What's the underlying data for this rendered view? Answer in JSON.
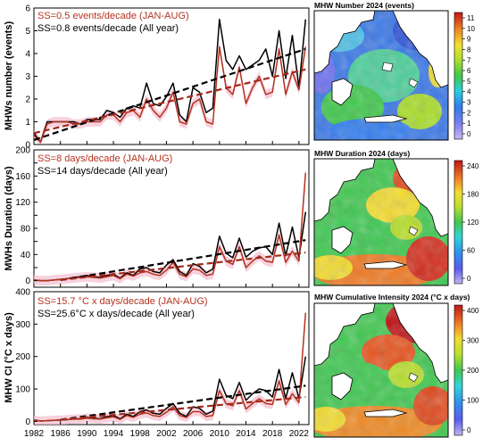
{
  "colors": {
    "all_year": "#000000",
    "jan_aug": "#b5321f",
    "band": "#f4c2d2",
    "trend_jan_aug": "#a22a1a"
  },
  "chart_data": [
    {
      "type": "line",
      "id": "number",
      "ylabel": "MHWs number  (events)",
      "ylim": [
        0,
        6
      ],
      "yticks": [
        0,
        1,
        2,
        3,
        4,
        5,
        6
      ],
      "xlim": [
        1982,
        2023.5
      ],
      "xticks": [
        1982,
        1986,
        1990,
        1994,
        1998,
        2002,
        2006,
        2010,
        2014,
        2018,
        2022
      ],
      "annotations": [
        "SS=0.5 events/decade (JAN-AUG)",
        "SS=0.8 events/decade (All year)"
      ],
      "x": [
        1982,
        1983,
        1984,
        1985,
        1986,
        1987,
        1988,
        1989,
        1990,
        1991,
        1992,
        1993,
        1994,
        1995,
        1996,
        1997,
        1998,
        1999,
        2000,
        2001,
        2002,
        2003,
        2004,
        2005,
        2006,
        2007,
        2008,
        2009,
        2010,
        2011,
        2012,
        2013,
        2014,
        2015,
        2016,
        2017,
        2018,
        2019,
        2020,
        2021,
        2022,
        2023
      ],
      "series": [
        {
          "name": "All year",
          "values": [
            0.5,
            0.1,
            1.0,
            1.0,
            1.0,
            1.0,
            1.0,
            0.9,
            1.1,
            1.1,
            1.1,
            1.5,
            1.4,
            1.2,
            1.6,
            1.7,
            1.6,
            2.7,
            1.8,
            1.7,
            2.1,
            2.7,
            1.3,
            1.0,
            2.5,
            2.3,
            1.4,
            1.6,
            5.5,
            3.7,
            3.3,
            3.9,
            3.3,
            3.5,
            3.7,
            4.2,
            3.0,
            5.0,
            2.9,
            4.8,
            2.5,
            5.5
          ]
        },
        {
          "name": "JAN-AUG",
          "values": [
            0.4,
            0.1,
            0.9,
            1.0,
            1.0,
            1.0,
            0.9,
            0.9,
            1.0,
            1.0,
            1.0,
            1.3,
            1.3,
            1.0,
            1.4,
            1.5,
            1.2,
            2.0,
            1.5,
            1.2,
            1.6,
            2.3,
            1.0,
            0.9,
            1.8,
            2.0,
            1.0,
            0.9,
            4.3,
            2.5,
            2.2,
            3.4,
            1.8,
            2.5,
            3.0,
            2.2,
            2.3,
            4.2,
            2.2,
            3.2,
            2.4,
            4.3
          ]
        }
      ],
      "trends": [
        {
          "name": "All year",
          "x": [
            1982,
            2023
          ],
          "y": [
            0.2,
            4.2
          ]
        },
        {
          "name": "JAN-AUG",
          "x": [
            1982,
            2023
          ],
          "y": [
            0.5,
            3.3
          ]
        }
      ]
    },
    {
      "type": "line",
      "id": "duration",
      "ylabel": "MWHs Duration (days)",
      "ylim": [
        -10,
        200
      ],
      "yticks": [
        0,
        20,
        40,
        60,
        80,
        100,
        120,
        140,
        160,
        180,
        200
      ],
      "ytick_labels": [
        "0",
        "",
        "40",
        "",
        "80",
        "",
        "120",
        "",
        "160",
        "",
        "200"
      ],
      "xlim": [
        1982,
        2023.5
      ],
      "xticks": [
        1982,
        1986,
        1990,
        1994,
        1998,
        2002,
        2006,
        2010,
        2014,
        2018,
        2022
      ],
      "annotations": [
        "SS=8 days/decade (JAN-AUG)",
        "SS=14 days/decade (All year)"
      ],
      "x": [
        1982,
        1983,
        1984,
        1985,
        1986,
        1987,
        1988,
        1989,
        1990,
        1991,
        1992,
        1993,
        1994,
        1995,
        1996,
        1997,
        1998,
        1999,
        2000,
        2001,
        2002,
        2003,
        2004,
        2005,
        2006,
        2007,
        2008,
        2009,
        2010,
        2011,
        2012,
        2013,
        2014,
        2015,
        2016,
        2017,
        2018,
        2019,
        2020,
        2021,
        2022,
        2023
      ],
      "series": [
        {
          "name": "All year",
          "values": [
            1,
            0,
            0,
            1,
            2,
            3,
            5,
            6,
            8,
            6,
            5,
            8,
            10,
            4,
            12,
            8,
            18,
            20,
            14,
            12,
            24,
            32,
            14,
            8,
            26,
            22,
            12,
            18,
            68,
            42,
            35,
            65,
            36,
            45,
            50,
            52,
            40,
            88,
            38,
            82,
            35,
            105
          ]
        },
        {
          "name": "JAN-AUG",
          "values": [
            1,
            0,
            0,
            1,
            2,
            3,
            4,
            5,
            6,
            5,
            4,
            6,
            8,
            3,
            10,
            7,
            12,
            14,
            10,
            8,
            16,
            28,
            10,
            6,
            18,
            16,
            8,
            10,
            52,
            30,
            25,
            52,
            20,
            30,
            38,
            30,
            28,
            70,
            28,
            45,
            30,
            165
          ]
        }
      ],
      "trends": [
        {
          "name": "All year",
          "x": [
            1986,
            2023
          ],
          "y": [
            1,
            62
          ]
        },
        {
          "name": "JAN-AUG",
          "x": [
            1986,
            2023
          ],
          "y": [
            1,
            43
          ]
        }
      ]
    },
    {
      "type": "line",
      "id": "intensity",
      "ylabel": "MHW CI (°C x days)",
      "ylim": [
        -10,
        400
      ],
      "yticks": [
        0,
        100,
        200,
        300,
        400
      ],
      "xlim": [
        1982,
        2023.5
      ],
      "xticks": [
        1982,
        1986,
        1990,
        1994,
        1998,
        2002,
        2006,
        2010,
        2014,
        2018,
        2022
      ],
      "xtick_labels": [
        "1982",
        "1986",
        "1990",
        "1994",
        "1998",
        "2002",
        "2006",
        "2010",
        "2014",
        "2018",
        "2022"
      ],
      "annotations": [
        "SS=15.7 °C x days/decade (JAN-AUG)",
        "SS=25.6°C x days/decade (All year)"
      ],
      "x": [
        1982,
        1983,
        1984,
        1985,
        1986,
        1987,
        1988,
        1989,
        1990,
        1991,
        1992,
        1993,
        1994,
        1995,
        1996,
        1997,
        1998,
        1999,
        2000,
        2001,
        2002,
        2003,
        2004,
        2005,
        2006,
        2007,
        2008,
        2009,
        2010,
        2011,
        2012,
        2013,
        2014,
        2015,
        2016,
        2017,
        2018,
        2019,
        2020,
        2021,
        2022,
        2023
      ],
      "series": [
        {
          "name": "All year",
          "values": [
            4,
            1,
            2,
            3,
            4,
            5,
            8,
            8,
            12,
            10,
            8,
            14,
            18,
            8,
            22,
            15,
            30,
            35,
            25,
            22,
            40,
            55,
            25,
            15,
            45,
            40,
            22,
            32,
            130,
            80,
            70,
            120,
            65,
            85,
            100,
            95,
            75,
            160,
            70,
            150,
            70,
            200
          ]
        },
        {
          "name": "JAN-AUG",
          "values": [
            3,
            1,
            2,
            3,
            4,
            5,
            7,
            7,
            10,
            8,
            7,
            11,
            14,
            6,
            18,
            12,
            22,
            26,
            18,
            15,
            28,
            45,
            18,
            12,
            30,
            30,
            15,
            18,
            95,
            55,
            48,
            95,
            38,
            55,
            70,
            55,
            52,
            125,
            52,
            85,
            58,
            335
          ]
        }
      ],
      "trends": [
        {
          "name": "All year",
          "x": [
            1986,
            2023
          ],
          "y": [
            5,
            110
          ]
        },
        {
          "name": "JAN-AUG",
          "x": [
            1986,
            2023
          ],
          "y": [
            5,
            75
          ]
        }
      ]
    }
  ],
  "maps": [
    {
      "title": "MHW Number 2024 (events)",
      "colorbar_ticks": [
        "11",
        "10",
        "9",
        "8",
        "7",
        "6",
        "5",
        "4",
        "3",
        "2",
        "1",
        "0"
      ]
    },
    {
      "title": "MHW Duration 2024 (days)",
      "colorbar_ticks": [
        "240",
        "180",
        "120",
        "60",
        "0"
      ]
    },
    {
      "title": "MHW Cumulative Intensity 2024 (°C x days)",
      "colorbar_ticks": [
        "400",
        "300",
        "200",
        "100",
        "0"
      ]
    }
  ]
}
